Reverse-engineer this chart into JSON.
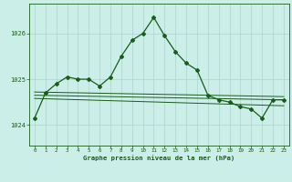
{
  "title": "Graphe pression niveau de la mer (hPa)",
  "background_color": "#cceee8",
  "grid_color": "#aad4cc",
  "line_color": "#1a5c1a",
  "xlim": [
    -0.5,
    23.5
  ],
  "ylim": [
    1023.55,
    1026.65
  ],
  "yticks": [
    1024,
    1025,
    1026
  ],
  "xticks": [
    0,
    1,
    2,
    3,
    4,
    5,
    6,
    7,
    8,
    9,
    10,
    11,
    12,
    13,
    14,
    15,
    16,
    17,
    18,
    19,
    20,
    21,
    22,
    23
  ],
  "series_main": {
    "x": [
      0,
      1,
      2,
      3,
      4,
      5,
      6,
      7,
      8,
      9,
      10,
      11,
      12,
      13,
      14,
      15,
      16,
      17,
      18,
      19,
      20,
      21,
      22,
      23
    ],
    "y": [
      1024.15,
      1024.7,
      1024.9,
      1025.05,
      1025.0,
      1025.0,
      1024.85,
      1025.05,
      1025.5,
      1025.85,
      1026.0,
      1026.35,
      1025.95,
      1025.6,
      1025.35,
      1025.2,
      1024.65,
      1024.55,
      1024.5,
      1024.4,
      1024.35,
      1024.15,
      1024.55,
      1024.55
    ]
  },
  "series_flat1": {
    "x": [
      0,
      23
    ],
    "y": [
      1024.65,
      1024.55
    ]
  },
  "series_flat2": {
    "x": [
      0,
      23
    ],
    "y": [
      1024.58,
      1024.42
    ]
  },
  "series_flat3": {
    "x": [
      0,
      23
    ],
    "y": [
      1024.72,
      1024.62
    ]
  }
}
